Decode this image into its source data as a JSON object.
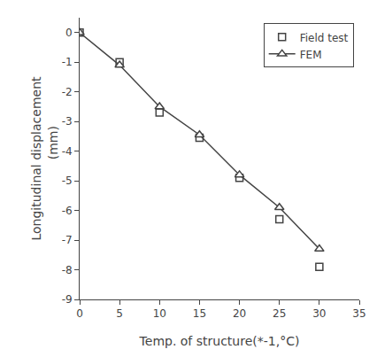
{
  "chart_data": {
    "type": "line",
    "x": [
      0,
      5,
      10,
      15,
      20,
      25,
      30
    ],
    "series": [
      {
        "name": "Field test",
        "color": "#444444",
        "values": [
          0,
          -1.0,
          -2.7,
          -3.55,
          -4.9,
          -6.3,
          -7.9
        ],
        "marker": "square",
        "line_style": "none"
      },
      {
        "name": "FEM",
        "color": "#444444",
        "values": [
          0,
          -1.1,
          -2.5,
          -3.45,
          -4.8,
          -5.9,
          -7.3
        ],
        "marker": "triangle-up",
        "line_style": "solid"
      }
    ],
    "xlabel": "Temp. of structure(*-1,°C)",
    "ylabel": "Longitudinal displacement\n        (mm)",
    "xlim": [
      0,
      35
    ],
    "ylim": [
      -9,
      0.5
    ],
    "xticks": [
      0,
      5,
      10,
      15,
      20,
      25,
      30,
      35
    ],
    "yticks": [
      0,
      -1,
      -2,
      -3,
      -4,
      -5,
      -6,
      -7,
      -8,
      -9
    ],
    "grid": false,
    "legend": "upper right"
  }
}
